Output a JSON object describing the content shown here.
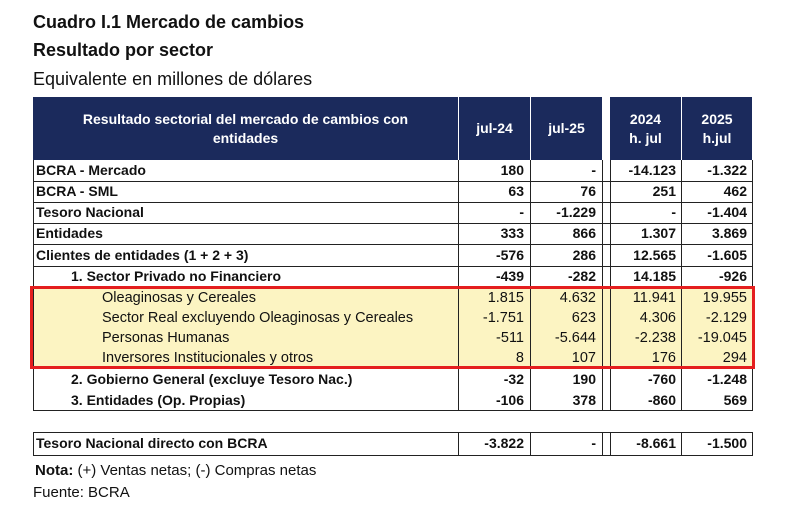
{
  "title": "Cuadro I.1 Mercado de cambios",
  "subtitle": "Resultado por sector",
  "unit": "Equivalente en millones de dólares",
  "header": {
    "col0": "Resultado sectorial del mercado de cambios con entidades",
    "col1": "jul-24",
    "col2": "jul-25",
    "col3": "2024\nh. jul",
    "col4": "2025\nh.jul"
  },
  "rows": [
    {
      "label": "BCRA - Mercado",
      "v": [
        "180",
        "-",
        "-14.123",
        "-1.322"
      ]
    },
    {
      "label": "BCRA - SML",
      "v": [
        "63",
        "76",
        "251",
        "462"
      ]
    },
    {
      "label": "Tesoro Nacional",
      "v": [
        "-",
        "-1.229",
        "-",
        "-1.404"
      ]
    },
    {
      "label": "Entidades",
      "v": [
        "333",
        "866",
        "1.307",
        "3.869"
      ]
    },
    {
      "label": "Clientes de entidades (1 + 2 + 3)",
      "v": [
        "-576",
        "286",
        "12.565",
        "-1.605"
      ]
    },
    {
      "label": "1. Sector Privado no Financiero",
      "v": [
        "-439",
        "-282",
        "14.185",
        "-926"
      ]
    },
    {
      "label": "Oleaginosas y Cereales",
      "v": [
        "1.815",
        "4.632",
        "11.941",
        "19.955"
      ]
    },
    {
      "label": "Sector Real excluyendo Oleaginosas y Cereales",
      "v": [
        "-1.751",
        "623",
        "4.306",
        "-2.129"
      ]
    },
    {
      "label": "Personas Humanas",
      "v": [
        "-511",
        "-5.644",
        "-2.238",
        "-19.045"
      ]
    },
    {
      "label": "Inversores Institucionales y otros",
      "v": [
        "8",
        "107",
        "176",
        "294"
      ]
    },
    {
      "label": "2. Gobierno General (excluye Tesoro Nac.)",
      "v": [
        "-32",
        "190",
        "-760",
        "-1.248"
      ]
    },
    {
      "label": "3. Entidades (Op. Propias)",
      "v": [
        "-106",
        "378",
        "-860",
        "569"
      ]
    }
  ],
  "total": {
    "label": "Tesoro Nacional directo con BCRA",
    "v": [
      "-3.822",
      "-",
      "-8.661",
      "-1.500"
    ]
  },
  "note_label": "Nota:",
  "note_text": " (+) Ventas netas; (-) Compras netas",
  "source": "Fuente: BCRA"
}
